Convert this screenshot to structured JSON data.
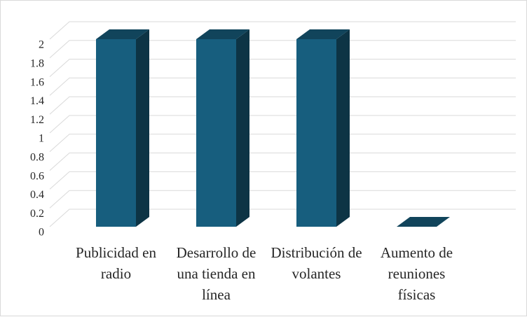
{
  "chart_data": {
    "type": "bar3d",
    "categories": [
      "Publicidad en radio",
      "Desarrollo de una tienda en línea",
      "Distribución de volantes",
      "Aumento de reuniones físicas"
    ],
    "values": [
      2,
      2,
      2,
      0
    ],
    "color": "#175e7e",
    "ylim": [
      0,
      2
    ],
    "yticks": [
      0,
      0.2,
      0.4,
      0.6,
      0.8,
      1,
      1.2,
      1.4,
      1.6,
      1.8,
      2
    ],
    "grid": true
  }
}
